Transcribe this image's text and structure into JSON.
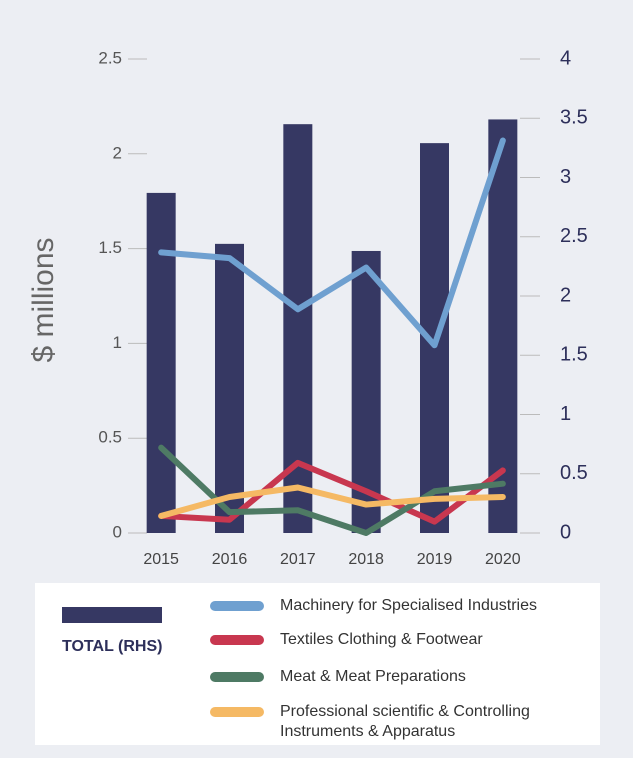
{
  "chart_data": {
    "type": "bar",
    "ylabel": "$ millions",
    "categories": [
      "2015",
      "2016",
      "2017",
      "2018",
      "2019",
      "2020"
    ],
    "ylim": [
      0,
      2.5
    ],
    "yticks": [
      0,
      0.5,
      1,
      1.5,
      2,
      2.5
    ],
    "y2lim": [
      0,
      4
    ],
    "y2ticks": [
      0,
      0.5,
      1,
      1.5,
      2,
      2.5,
      3,
      3.5,
      4
    ],
    "series": [
      {
        "name": "TOTAL (RHS)",
        "type": "bar",
        "axis": "y2",
        "color": "#363863",
        "values": [
          2.87,
          2.44,
          3.45,
          2.38,
          3.29,
          3.49
        ]
      },
      {
        "name": "Machinery for Specialised Industries",
        "type": "line",
        "color": "#6fa0d0",
        "values": [
          1.48,
          1.45,
          1.18,
          1.4,
          0.99,
          2.07
        ]
      },
      {
        "name": "Textiles Clothing & Footwear",
        "type": "line",
        "color": "#c8374f",
        "values": [
          0.09,
          0.07,
          0.37,
          0.22,
          0.06,
          0.33
        ]
      },
      {
        "name": "Meat & Meat Preparations",
        "type": "line",
        "color": "#4e7a64",
        "values": [
          0.45,
          0.11,
          0.12,
          0.0,
          0.22,
          0.26
        ]
      },
      {
        "name": "Professional scientific & Controlling Instruments & Apparatus",
        "type": "line",
        "color": "#f5b964",
        "values": [
          0.09,
          0.19,
          0.24,
          0.15,
          0.18,
          0.19
        ]
      }
    ]
  }
}
